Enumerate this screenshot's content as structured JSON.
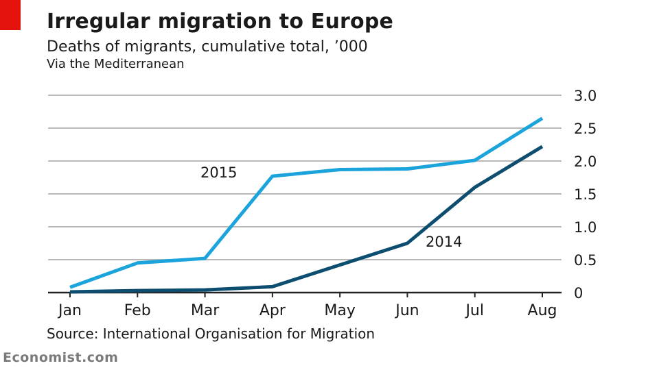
{
  "header": {
    "title": "Irregular migration to Europe",
    "subtitle": "Deaths of migrants, cumulative total, ’000",
    "subsubtitle": "Via the Mediterranean",
    "tab_color": "#e3120b"
  },
  "footer": {
    "source": "Source: International Organisation for Migration",
    "brand": "Economist.com"
  },
  "chart_data": {
    "type": "line",
    "title": "Irregular migration to Europe",
    "xlabel": "",
    "ylabel": "Deaths of migrants, cumulative total, ’000",
    "categories": [
      "Jan",
      "Feb",
      "Mar",
      "Apr",
      "May",
      "Jun",
      "Jul",
      "Aug"
    ],
    "x": [
      0,
      1,
      2,
      3,
      4,
      5,
      6,
      6.5,
      7
    ],
    "ylim": [
      0,
      3.0
    ],
    "yticks": [
      0,
      0.5,
      1.0,
      1.5,
      2.0,
      2.5,
      3.0
    ],
    "ytick_labels": [
      "0",
      "0.5",
      "1.0",
      "1.5",
      "2.0",
      "2.5",
      "3.0"
    ],
    "grid": true,
    "series": [
      {
        "name": "2015",
        "label": "2015",
        "color": "#1ba3dc",
        "x": [
          0,
          1,
          2,
          3,
          4,
          5,
          6,
          7
        ],
        "values": [
          0.08,
          0.45,
          0.52,
          1.77,
          1.87,
          1.88,
          2.01,
          2.65
        ]
      },
      {
        "name": "2014",
        "label": "2014",
        "color": "#0d4e70",
        "x": [
          0,
          1,
          2,
          3,
          4,
          5,
          6,
          7
        ],
        "values": [
          0.01,
          0.03,
          0.04,
          0.09,
          0.42,
          0.75,
          1.6,
          2.22
        ]
      }
    ]
  }
}
